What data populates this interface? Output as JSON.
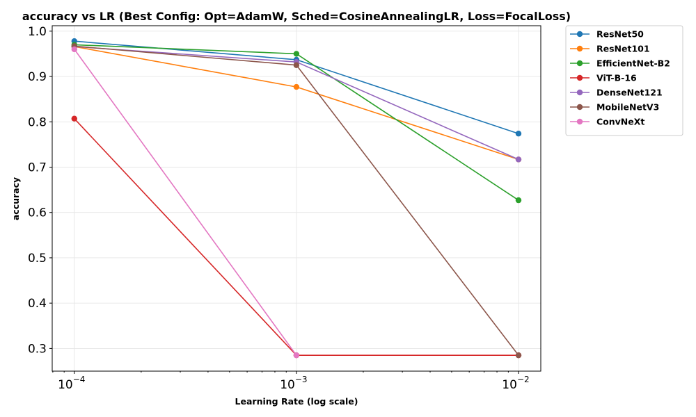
{
  "chart_data": {
    "type": "line",
    "title": "accuracy vs LR (Best Config: Opt=AdamW, Sched=CosineAnnealingLR, Loss=FocalLoss)",
    "xlabel": "Learning Rate (log scale)",
    "ylabel": "accuracy",
    "x_scale": "log",
    "x": [
      0.0001,
      0.001,
      0.01
    ],
    "x_tick_labels": [
      {
        "base": "10",
        "exp": "−4"
      },
      {
        "base": "10",
        "exp": "−3"
      },
      {
        "base": "10",
        "exp": "−2"
      }
    ],
    "xlim": [
      7.95e-05,
      0.0126
    ],
    "ylim": [
      0.25,
      1.012
    ],
    "y_ticks": [
      "0.3",
      "0.4",
      "0.5",
      "0.6",
      "0.7",
      "0.8",
      "0.9",
      "1.0"
    ],
    "grid": true,
    "legend_position": "outside-top-right",
    "series": [
      {
        "name": "ResNet50",
        "color": "#1f77b4",
        "values": [
          0.978,
          0.937,
          0.774
        ]
      },
      {
        "name": "ResNet101",
        "color": "#ff7f0e",
        "values": [
          0.966,
          0.877,
          0.717
        ]
      },
      {
        "name": "EfficientNet-B2",
        "color": "#2ca02c",
        "values": [
          0.97,
          0.95,
          0.627
        ]
      },
      {
        "name": "ViT-B-16",
        "color": "#d62728",
        "values": [
          0.807,
          0.285,
          0.285
        ]
      },
      {
        "name": "DenseNet121",
        "color": "#9467bd",
        "values": [
          0.966,
          0.932,
          0.717
        ]
      },
      {
        "name": "MobileNetV3",
        "color": "#8c564b",
        "values": [
          0.967,
          0.925,
          0.285
        ]
      },
      {
        "name": "ConvNeXt",
        "color": "#e377c2",
        "values": [
          0.96,
          0.285,
          null
        ]
      }
    ]
  }
}
